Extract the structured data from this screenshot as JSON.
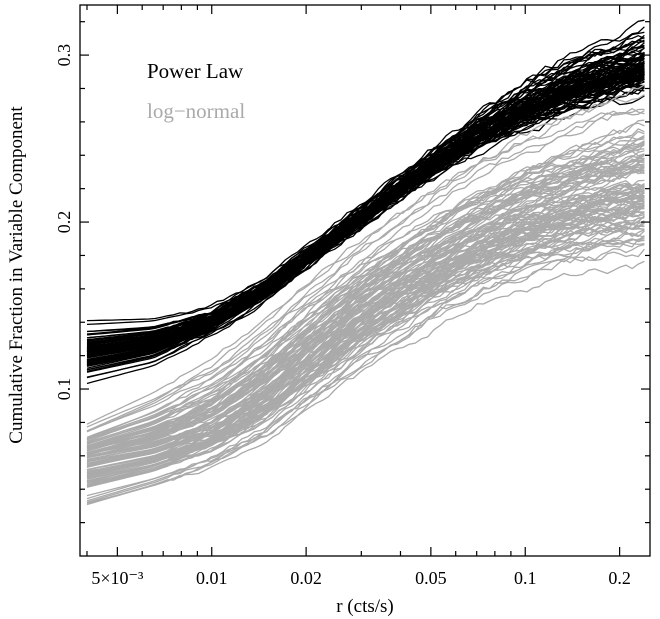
{
  "chart_data": {
    "type": "line",
    "title": "",
    "xlabel": "r (cts/s)",
    "ylabel": "Cumulative Fraction in Variable Component",
    "x_scale": "log",
    "xlim": [
      0.0038,
      0.25
    ],
    "ylim": [
      0.0,
      0.33
    ],
    "grid": false,
    "legend_position": "top-left",
    "x_ticks": [
      {
        "value": 0.005,
        "label": "5×10⁻³"
      },
      {
        "value": 0.01,
        "label": "0.01"
      },
      {
        "value": 0.02,
        "label": "0.02"
      },
      {
        "value": 0.05,
        "label": "0.05"
      },
      {
        "value": 0.1,
        "label": "0.1"
      },
      {
        "value": 0.2,
        "label": "0.2"
      }
    ],
    "y_ticks": [
      {
        "value": 0.1,
        "label": "0.1"
      },
      {
        "value": 0.2,
        "label": "0.2"
      },
      {
        "value": 0.3,
        "label": "0.3"
      }
    ],
    "x": [
      0.004,
      0.0065,
      0.01,
      0.015,
      0.02,
      0.03,
      0.05,
      0.07,
      0.1,
      0.15,
      0.24
    ],
    "series": [
      {
        "name": "Power Law",
        "color": "#000000",
        "median": [
          0.122,
          0.128,
          0.14,
          0.16,
          0.178,
          0.203,
          0.234,
          0.252,
          0.268,
          0.283,
          0.295
        ],
        "spread_low": [
          0.02,
          0.016,
          0.009,
          0.008,
          0.008,
          0.009,
          0.011,
          0.014,
          0.017,
          0.021,
          0.025
        ],
        "spread_high": [
          0.018,
          0.014,
          0.01,
          0.008,
          0.008,
          0.009,
          0.011,
          0.015,
          0.02,
          0.024,
          0.026
        ],
        "curve_count": 95
      },
      {
        "name": "log−normal",
        "color": "#aaaaaa",
        "median": [
          0.057,
          0.064,
          0.076,
          0.098,
          0.118,
          0.145,
          0.172,
          0.187,
          0.2,
          0.211,
          0.219
        ],
        "spread_low": [
          0.03,
          0.025,
          0.025,
          0.03,
          0.033,
          0.036,
          0.036,
          0.036,
          0.037,
          0.039,
          0.041
        ],
        "spread_high": [
          0.022,
          0.035,
          0.045,
          0.05,
          0.052,
          0.052,
          0.056,
          0.058,
          0.062,
          0.066,
          0.072
        ],
        "curve_count": 110
      }
    ]
  }
}
